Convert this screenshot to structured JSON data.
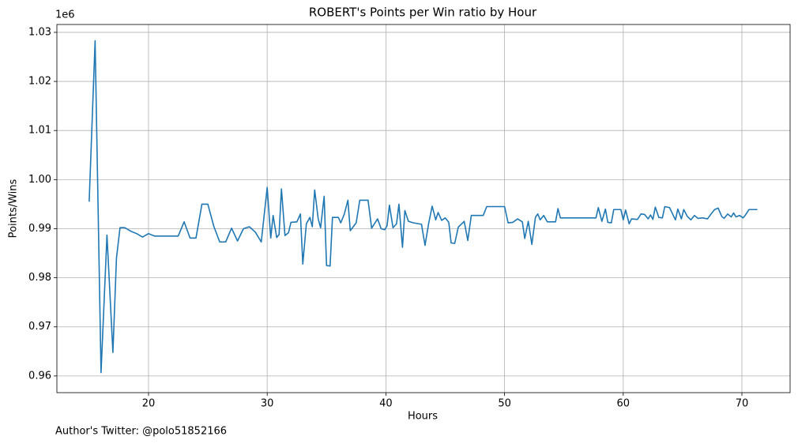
{
  "chart_data": {
    "type": "line",
    "title": "ROBERT's Points per Win ratio by Hour",
    "x_label": "Hours",
    "y_label": "Points/Wins",
    "y_offset_label": "1e6",
    "footnote": "Author's Twitter: @polo51852166",
    "grid": true,
    "xlim": [
      12.28,
      74.06
    ],
    "ylim": [
      0.9566,
      1.0316
    ],
    "xticks": [
      20,
      30,
      40,
      50,
      60,
      70
    ],
    "yticks": [
      0.96,
      0.97,
      0.98,
      0.99,
      {
        "value": 1,
        "label": "1.00"
      },
      1.01,
      1.02,
      1.03
    ],
    "series": [
      {
        "name": "Points/Wins",
        "color": "#1f77b4",
        "x": [
          15.0,
          15.5,
          16.0,
          16.5,
          17.0,
          17.3,
          17.6,
          18.0,
          18.5,
          19.0,
          19.5,
          20.0,
          20.5,
          21.0,
          22.0,
          22.5,
          23.0,
          23.5,
          24.0,
          24.5,
          25.0,
          25.5,
          26.0,
          26.5,
          27.0,
          27.5,
          28.0,
          28.5,
          29.0,
          29.5,
          30.0,
          30.3,
          30.5,
          30.8,
          31.0,
          31.2,
          31.5,
          31.8,
          32.0,
          32.5,
          32.8,
          33.0,
          33.3,
          33.6,
          33.8,
          34.0,
          34.3,
          34.5,
          34.8,
          35.0,
          35.3,
          35.5,
          36.0,
          36.2,
          36.5,
          36.8,
          37.0,
          37.5,
          37.8,
          38.5,
          38.8,
          39.3,
          39.6,
          39.9,
          40.1,
          40.3,
          40.6,
          40.9,
          41.1,
          41.4,
          41.6,
          41.9,
          42.3,
          43.0,
          43.3,
          43.6,
          43.9,
          44.2,
          44.4,
          44.7,
          45.0,
          45.3,
          45.5,
          45.8,
          46.1,
          46.6,
          46.9,
          47.2,
          48.2,
          48.5,
          50.0,
          50.3,
          50.7,
          51.1,
          51.5,
          51.7,
          52.0,
          52.3,
          52.6,
          52.8,
          53.0,
          53.3,
          53.6,
          54.3,
          54.5,
          54.7,
          57.7,
          57.9,
          58.2,
          58.5,
          58.7,
          59.0,
          59.2,
          59.8,
          60.0,
          60.2,
          60.5,
          60.7,
          61.2,
          61.5,
          61.8,
          62.1,
          62.3,
          62.5,
          62.7,
          63.0,
          63.3,
          63.5,
          63.9,
          64.2,
          64.4,
          64.6,
          64.9,
          65.1,
          65.4,
          65.7,
          66.0,
          66.3,
          66.7,
          67.1,
          67.4,
          67.7,
          68.0,
          68.3,
          68.5,
          68.8,
          69.1,
          69.3,
          69.5,
          69.8,
          70.1,
          70.3,
          70.6,
          71.3
        ],
        "values": [
          0.9955,
          1.0283,
          0.9607,
          0.9887,
          0.9648,
          0.984,
          0.9902,
          0.9902,
          0.9895,
          0.989,
          0.9883,
          0.989,
          0.9885,
          0.9885,
          0.9885,
          0.9885,
          0.9914,
          0.9881,
          0.9881,
          0.995,
          0.995,
          0.9905,
          0.9873,
          0.9873,
          0.9901,
          0.9875,
          0.99,
          0.9904,
          0.9893,
          0.9873,
          0.9984,
          0.9881,
          0.9927,
          0.9882,
          0.9888,
          0.9981,
          0.9886,
          0.9892,
          0.9913,
          0.9914,
          0.993,
          0.9828,
          0.991,
          0.9923,
          0.9904,
          0.9979,
          0.992,
          0.9902,
          0.9966,
          0.9825,
          0.9824,
          0.9923,
          0.9923,
          0.9912,
          0.993,
          0.9958,
          0.9896,
          0.9912,
          0.9958,
          0.9958,
          0.9901,
          0.992,
          0.99,
          0.9898,
          0.9906,
          0.9948,
          0.9902,
          0.991,
          0.995,
          0.9862,
          0.9937,
          0.9915,
          0.9912,
          0.9909,
          0.9866,
          0.991,
          0.9946,
          0.9918,
          0.9933,
          0.9917,
          0.9922,
          0.9913,
          0.9871,
          0.987,
          0.9903,
          0.9915,
          0.9876,
          0.9927,
          0.9927,
          0.9945,
          0.9945,
          0.9912,
          0.9913,
          0.992,
          0.9914,
          0.988,
          0.9915,
          0.9868,
          0.9923,
          0.993,
          0.9918,
          0.9927,
          0.9914,
          0.9914,
          0.9941,
          0.9922,
          0.9922,
          0.9943,
          0.9915,
          0.994,
          0.9913,
          0.9912,
          0.9939,
          0.9939,
          0.9918,
          0.9938,
          0.991,
          0.992,
          0.9919,
          0.993,
          0.9929,
          0.992,
          0.9928,
          0.9919,
          0.9944,
          0.9923,
          0.9922,
          0.9945,
          0.9943,
          0.9928,
          0.9918,
          0.994,
          0.992,
          0.9939,
          0.9925,
          0.9918,
          0.9927,
          0.9921,
          0.9922,
          0.992,
          0.993,
          0.9939,
          0.9942,
          0.9925,
          0.9921,
          0.993,
          0.9924,
          0.9932,
          0.9924,
          0.9927,
          0.9922,
          0.9928,
          0.9939,
          0.9939
        ]
      }
    ]
  }
}
